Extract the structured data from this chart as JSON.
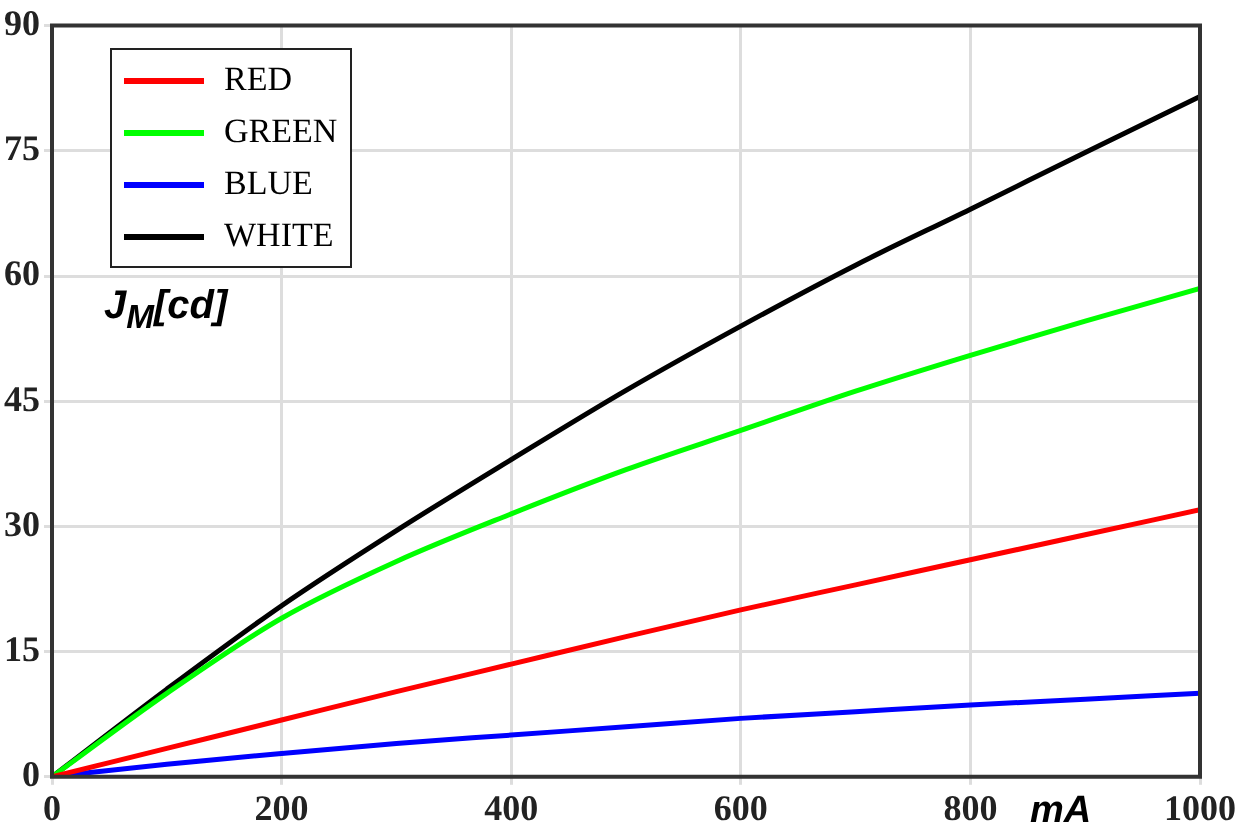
{
  "chart_data": {
    "type": "line",
    "xlabel": "mA",
    "ylabel": "J$_{M}$[cd]",
    "x": [
      0,
      100,
      200,
      300,
      400,
      500,
      600,
      700,
      800,
      900,
      1000
    ],
    "series": [
      {
        "name": "RED",
        "color": "#ff0000",
        "values": [
          0,
          3.4,
          6.8,
          10.2,
          13.5,
          16.8,
          20,
          23,
          26,
          29,
          32
        ]
      },
      {
        "name": "GREEN",
        "color": "#00ff00",
        "values": [
          0,
          10,
          19,
          25.8,
          31.5,
          36.8,
          41.5,
          46.2,
          50.5,
          54.6,
          58.5
        ]
      },
      {
        "name": "BLUE",
        "color": "#0000ff",
        "values": [
          0,
          1.5,
          2.8,
          4,
          5,
          6,
          7,
          7.8,
          8.6,
          9.3,
          10
        ]
      },
      {
        "name": "WHITE",
        "color": "#000000",
        "values": [
          0,
          10.5,
          20.5,
          29.5,
          38,
          46.3,
          54,
          61.3,
          68,
          74.8,
          81.5
        ]
      }
    ],
    "xlim": [
      0,
      1000
    ],
    "xticks": [
      0,
      200,
      400,
      600,
      800,
      1000
    ],
    "ylim": [
      0,
      90
    ],
    "yticks": [
      0,
      15,
      30,
      45,
      60,
      75,
      90
    ],
    "grid": true,
    "legend": "top left",
    "marker": "none",
    "line_style": "solid"
  }
}
